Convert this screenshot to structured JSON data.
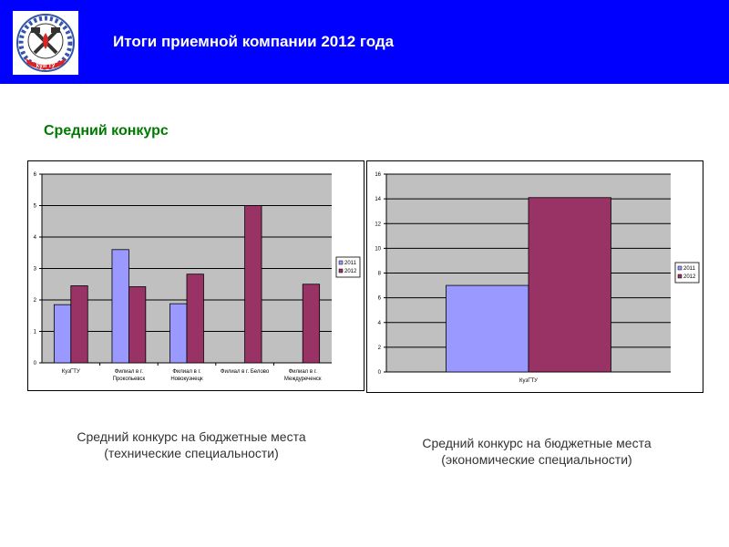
{
  "header": {
    "title": "Итоги приемной компании 2012 года",
    "bg_color": "#0000ff"
  },
  "logo": {
    "text": "КузГТУ"
  },
  "section_title": "Средний конкурс",
  "legend": [
    "2011",
    "2012"
  ],
  "colors": {
    "s2011": "#9999ff",
    "s2012": "#993366",
    "plot_bg": "#c0c0c0"
  },
  "captions": {
    "left": [
      "Средний конкурс на бюджетные места",
      "(технические специальности)"
    ],
    "right": [
      "Средний конкурс на бюджетные места",
      "(экономические специальности)"
    ]
  },
  "chart_data": [
    {
      "type": "bar",
      "categories": [
        "КузГТУ",
        "Филиал в г. Прокопьевск",
        "Филиал в г. Новокузнецк",
        "Филиал в г. Белово",
        "Филиал в г. Междуреченск"
      ],
      "category_lines": [
        [
          "КузГТУ"
        ],
        [
          "Филиал в г.",
          "Прокопьевск"
        ],
        [
          "Филиал в г.",
          "Новокузнецк"
        ],
        [
          "Филиал в г. Белово"
        ],
        [
          "Филиал в г.",
          "Междуреченск"
        ]
      ],
      "series": [
        {
          "name": "2011",
          "values": [
            1.85,
            3.6,
            1.88,
            null,
            null
          ]
        },
        {
          "name": "2012",
          "values": [
            2.45,
            2.42,
            2.82,
            5.0,
            2.5
          ]
        }
      ],
      "ylim": [
        0,
        6
      ],
      "yticks": [
        0,
        1,
        2,
        3,
        4,
        5,
        6
      ],
      "grid": true,
      "legend_position": "right"
    },
    {
      "type": "bar",
      "categories": [
        "КузГТУ"
      ],
      "category_lines": [
        [
          "КузГТУ"
        ]
      ],
      "series": [
        {
          "name": "2011",
          "values": [
            7.0
          ]
        },
        {
          "name": "2012",
          "values": [
            14.1
          ]
        }
      ],
      "ylim": [
        0,
        16
      ],
      "yticks": [
        0,
        2,
        4,
        6,
        8,
        10,
        12,
        14,
        16
      ],
      "grid": true,
      "legend_position": "right"
    }
  ]
}
